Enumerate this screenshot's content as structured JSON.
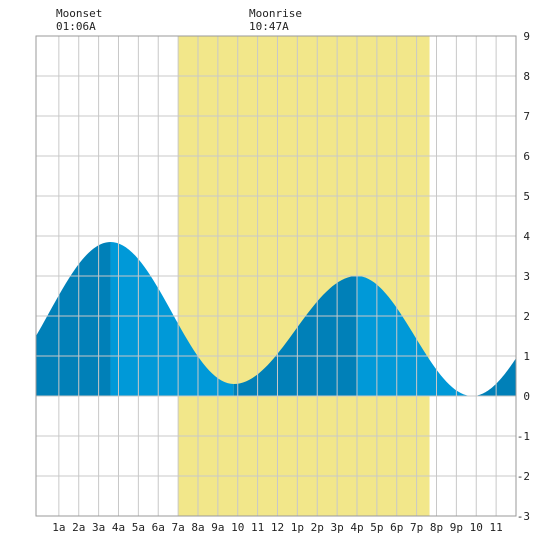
{
  "chart_data": {
    "type": "area",
    "x_unit": "hour",
    "xlim": [
      -0.15,
      24.0
    ],
    "ylim": [
      -3,
      9
    ],
    "y_ticks": [
      -3,
      -2,
      -1,
      0,
      1,
      2,
      3,
      4,
      5,
      6,
      7,
      8,
      9
    ],
    "x_ticks": [
      {
        "hour": 1,
        "label": "1a"
      },
      {
        "hour": 2,
        "label": "2a"
      },
      {
        "hour": 3,
        "label": "3a"
      },
      {
        "hour": 4,
        "label": "4a"
      },
      {
        "hour": 5,
        "label": "5a"
      },
      {
        "hour": 6,
        "label": "6a"
      },
      {
        "hour": 7,
        "label": "7a"
      },
      {
        "hour": 8,
        "label": "8a"
      },
      {
        "hour": 9,
        "label": "9a"
      },
      {
        "hour": 10,
        "label": "10"
      },
      {
        "hour": 11,
        "label": "11"
      },
      {
        "hour": 12,
        "label": "12"
      },
      {
        "hour": 13,
        "label": "1p"
      },
      {
        "hour": 14,
        "label": "2p"
      },
      {
        "hour": 15,
        "label": "3p"
      },
      {
        "hour": 16,
        "label": "4p"
      },
      {
        "hour": 17,
        "label": "5p"
      },
      {
        "hour": 18,
        "label": "6p"
      },
      {
        "hour": 19,
        "label": "7p"
      },
      {
        "hour": 20,
        "label": "8p"
      },
      {
        "hour": 21,
        "label": "9p"
      },
      {
        "hour": 22,
        "label": "10"
      },
      {
        "hour": 23,
        "label": "11"
      }
    ],
    "grid": true,
    "daylight": {
      "start": 7.0,
      "end": 19.65
    },
    "tide_extremes": [
      {
        "hour": 3.6,
        "height": 3.85,
        "kind": "high"
      },
      {
        "hour": 9.8,
        "height": 0.3,
        "kind": "low"
      },
      {
        "hour": 16.0,
        "height": 3.0,
        "kind": "high"
      },
      {
        "hour": 21.8,
        "height": 0.0,
        "kind": "low"
      }
    ],
    "height_at_start": 1.65,
    "height_at_end": 1.0,
    "annotations": {
      "moonset": {
        "label": "Moonset",
        "time": "01:06A"
      },
      "moonrise": {
        "label": "Moonrise",
        "time": "10:47A"
      }
    },
    "colors": {
      "rising": "#0080b8",
      "falling": "#0099d8",
      "daylight": "#f2e78a",
      "grid": "#c8c8c8",
      "background": "#ffffff"
    }
  }
}
